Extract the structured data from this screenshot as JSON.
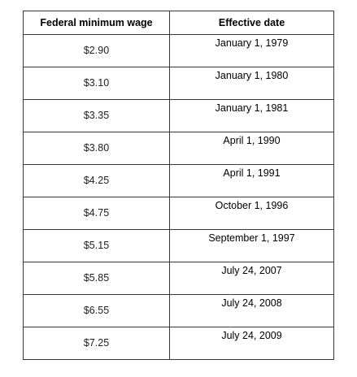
{
  "table": {
    "headers": [
      "Federal minimum wage",
      "Effective date"
    ],
    "rows": [
      {
        "wage": "$2.90",
        "date": "January 1, 1979"
      },
      {
        "wage": "$3.10",
        "date": "January 1, 1980"
      },
      {
        "wage": "$3.35",
        "date": "January 1, 1981"
      },
      {
        "wage": "$3.80",
        "date": "April 1, 1990"
      },
      {
        "wage": "$4.25",
        "date": "April 1, 1991"
      },
      {
        "wage": "$4.75",
        "date": "October 1, 1996"
      },
      {
        "wage": "$5.15",
        "date": "September 1, 1997"
      },
      {
        "wage": "$5.85",
        "date": "July 24, 2007"
      },
      {
        "wage": "$6.55",
        "date": "July 24, 2008"
      },
      {
        "wage": "$7.25",
        "date": "July 24, 2009"
      }
    ]
  }
}
